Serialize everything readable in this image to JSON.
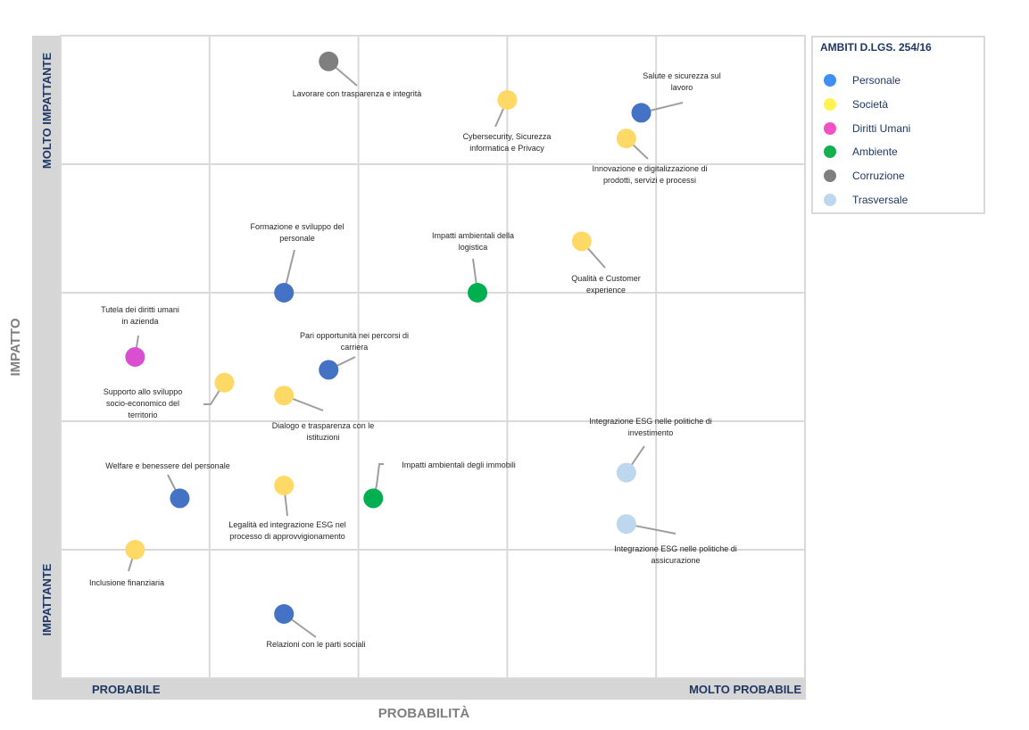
{
  "legend": {
    "title": "AMBITI D.LGS. 254/16",
    "items": [
      {
        "key": "personale",
        "label": "Personale",
        "color": "#3e8ef7"
      },
      {
        "key": "societa",
        "label": "Società",
        "color": "#fff353"
      },
      {
        "key": "diritti",
        "label": "Diritti Umani",
        "color": "#f052c6"
      },
      {
        "key": "ambiente",
        "label": "Ambiente",
        "color": "#13b14e"
      },
      {
        "key": "corruzione",
        "label": "Corruzione",
        "color": "#7f7f7f"
      },
      {
        "key": "trasversale",
        "label": "Trasversale",
        "color": "#bdd7ee"
      }
    ]
  },
  "axes": {
    "y_title": "IMPATTO",
    "y_top_label": "MOLTO IMPATTANTE",
    "y_bottom_label": "IMPATTANTE",
    "x_title": "PROBABILITÀ",
    "x_left_label": "PROBABILE",
    "x_right_label": "MOLTO PROBABILE"
  },
  "chart_data": {
    "type": "scatter",
    "xlim": [
      0,
      5
    ],
    "ylim": [
      0,
      5
    ],
    "grid": true,
    "xlabel": "PROBABILITÀ",
    "ylabel": "IMPATTO",
    "series_colors": {
      "personale": "#4472c4",
      "societa": "#ffd966",
      "diritti": "#d94fd0",
      "ambiente": "#00b050",
      "corruzione": "#7f7f7f",
      "trasversale": "#bdd7ee"
    },
    "points": [
      {
        "label": "Lavorare con trasparenza e integrità",
        "category": "corruzione",
        "x": 1.8,
        "y": 4.8
      },
      {
        "label": "Cybersecurity, Sicurezza informatica e Privacy",
        "category": "societa",
        "x": 3.0,
        "y": 4.5
      },
      {
        "label": "Salute e sicurezza sul lavoro",
        "category": "personale",
        "x": 3.9,
        "y": 4.4
      },
      {
        "label": "Innovazione e digitalizzazione di prodotti, servizi e processi",
        "category": "societa",
        "x": 3.8,
        "y": 4.2
      },
      {
        "label": "Formazione e sviluppo del personale",
        "category": "personale",
        "x": 1.5,
        "y": 3.0
      },
      {
        "label": "Impatti ambientali della logistica",
        "category": "ambiente",
        "x": 2.8,
        "y": 3.0
      },
      {
        "label": "Qualità e Customer experience",
        "category": "societa",
        "x": 3.5,
        "y": 3.4
      },
      {
        "label": "Tutela dei diritti umani in azienda",
        "category": "diritti",
        "x": 0.5,
        "y": 2.5
      },
      {
        "label": "Pari opportunità nei percorsi di carriera",
        "category": "personale",
        "x": 1.8,
        "y": 2.4
      },
      {
        "label": "Supporto allo sviluppo socio-economico del territorio",
        "category": "societa",
        "x": 1.1,
        "y": 2.3
      },
      {
        "label": "Dialogo e trasparenza con le istituzioni",
        "category": "societa",
        "x": 1.5,
        "y": 2.2
      },
      {
        "label": "Integrazione ESG nelle politiche di investimento",
        "category": "trasversale",
        "x": 3.8,
        "y": 1.6
      },
      {
        "label": "Welfare e benessere del personale",
        "category": "personale",
        "x": 0.8,
        "y": 1.4
      },
      {
        "label": "Legalità ed integrazione ESG nel processo di approvvigionamento",
        "category": "societa",
        "x": 1.5,
        "y": 1.5
      },
      {
        "label": "Impatti ambientali degli immobili",
        "category": "ambiente",
        "x": 2.1,
        "y": 1.4
      },
      {
        "label": "Integrazione ESG nelle politiche di assicurazione",
        "category": "trasversale",
        "x": 3.8,
        "y": 1.2
      },
      {
        "label": "Inclusione finanziaria",
        "category": "societa",
        "x": 0.5,
        "y": 1.0
      },
      {
        "label": "Relazioni con le parti sociali",
        "category": "personale",
        "x": 1.5,
        "y": 0.5
      }
    ],
    "label_lines": [
      [
        "Lavorare con trasparenza e integrità"
      ],
      [
        "Cybersecurity, Sicurezza",
        "informatica e Privacy"
      ],
      [
        "Salute e sicurezza sul",
        "lavoro"
      ],
      [
        "Innovazione e digitalizzazione di",
        "prodotti, servizi e processi"
      ],
      [
        "Formazione e sviluppo del",
        "personale"
      ],
      [
        "Impatti ambientali della",
        "logistica"
      ],
      [
        "Qualità e Customer",
        "experience"
      ],
      [
        "Tutela dei diritti umani",
        "in azienda"
      ],
      [
        "Pari opportunità nei percorsi di",
        "carriera"
      ],
      [
        "Supporto allo sviluppo",
        "socio-economico del",
        "territorio"
      ],
      [
        "Dialogo e trasparenza con le",
        "istituzioni"
      ],
      [
        "Integrazione ESG nelle politiche di",
        "investimento"
      ],
      [
        "Welfare e benessere del personale"
      ],
      [
        "Legalità ed integrazione ESG nel",
        "processo di approvvigionamento"
      ],
      [
        "Impatti ambientali degli immobili"
      ],
      [
        "Integrazione ESG nelle politiche di",
        "assicurazione"
      ],
      [
        "Inclusione finanziaria"
      ],
      [
        "Relazioni con le parti sociali"
      ]
    ]
  }
}
